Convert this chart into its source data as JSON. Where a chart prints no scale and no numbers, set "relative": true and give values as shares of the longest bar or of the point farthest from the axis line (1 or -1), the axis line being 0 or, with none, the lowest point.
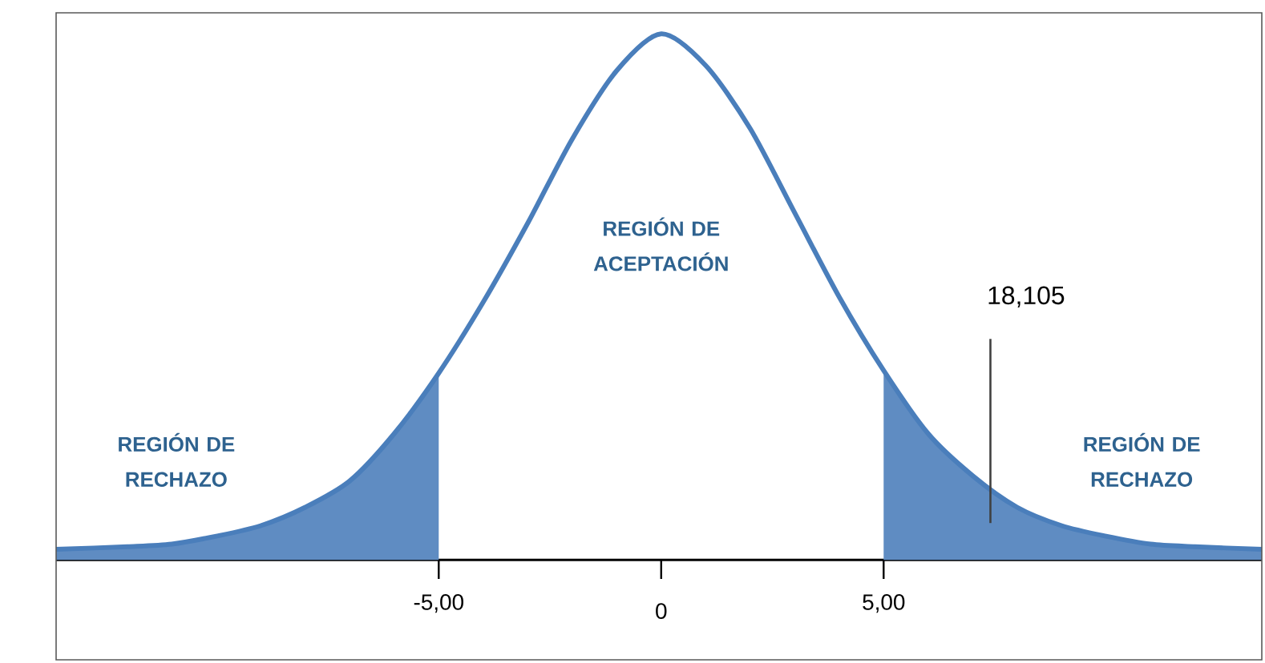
{
  "chart_data": {
    "type": "line",
    "relative": true,
    "xlim": [
      -13.6,
      13.5
    ],
    "xticks": [
      {
        "value": -5,
        "label": "-5,00"
      },
      {
        "value": 0,
        "label": "0"
      },
      {
        "value": 5,
        "label": "5,00"
      }
    ],
    "series": [
      {
        "type": "area",
        "color": "#5f8cc2",
        "x": [
          -13.6,
          -12,
          -11,
          -10,
          -9,
          -8,
          -7,
          -6,
          -5
        ],
        "values": [
          0.02,
          0.025,
          0.03,
          0.045,
          0.065,
          0.1,
          0.15,
          0.24,
          0.355
        ]
      },
      {
        "type": "area",
        "color": "#5f8cc2",
        "x": [
          5,
          6,
          7,
          8,
          9,
          10,
          11,
          12,
          13.5
        ],
        "values": [
          0.36,
          0.24,
          0.16,
          0.1,
          0.065,
          0.045,
          0.03,
          0.025,
          0.02
        ]
      },
      {
        "color": "#4a7ebb",
        "x": [
          -13.6,
          -12,
          -11,
          -10,
          -9,
          -8,
          -7,
          -6,
          -5,
          -4,
          -3,
          -2,
          -1,
          0,
          1,
          2,
          3,
          4,
          5,
          6,
          7,
          8,
          9,
          10,
          11,
          12,
          13.5
        ],
        "values": [
          0.02,
          0.025,
          0.03,
          0.045,
          0.065,
          0.1,
          0.15,
          0.24,
          0.355,
          0.49,
          0.64,
          0.8,
          0.93,
          1,
          0.94,
          0.82,
          0.66,
          0.5,
          0.36,
          0.24,
          0.16,
          0.1,
          0.065,
          0.045,
          0.03,
          0.025,
          0.02
        ]
      }
    ],
    "ref_lines": [
      {
        "axis": "x",
        "value": 7.4,
        "color": "#404040"
      }
    ],
    "annotations": [
      "REGIÓN DE ACEPTACIÓN",
      "REGIÓN DE RECHAZO",
      "REGIÓN DE RECHAZO",
      "18,105"
    ]
  }
}
